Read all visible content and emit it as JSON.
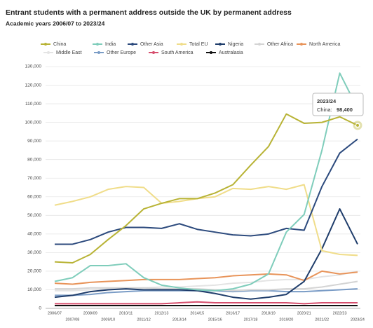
{
  "chart_data": {
    "type": "line",
    "title": "Entrant students with a permanent address outside the UK by permanent address",
    "subtitle": "Academic years 2006/07 to 2023/24",
    "categories": [
      "2006/07",
      "2007/08",
      "2008/09",
      "2009/10",
      "2010/11",
      "2011/12",
      "2012/13",
      "2013/14",
      "2014/15",
      "2015/16",
      "2016/17",
      "2017/18",
      "2018/19",
      "2019/20",
      "2020/21",
      "2021/22",
      "2022/23",
      "2023/24"
    ],
    "series": [
      {
        "name": "China",
        "color": "#b8b335",
        "values": [
          25000,
          24500,
          29000,
          37000,
          44500,
          53500,
          56500,
          59000,
          59000,
          62000,
          66500,
          77000,
          87000,
          104500,
          99500,
          100000,
          103000,
          98400
        ]
      },
      {
        "name": "India",
        "color": "#7fcdbb",
        "values": [
          14500,
          16500,
          23000,
          23000,
          24000,
          16500,
          12500,
          11000,
          10000,
          9500,
          10500,
          13000,
          18500,
          41000,
          50500,
          85000,
          126500,
          107500
        ]
      },
      {
        "name": "Other Asia",
        "color": "#2c4a7d",
        "values": [
          34500,
          34500,
          37000,
          41000,
          43500,
          43500,
          43000,
          45500,
          42500,
          41000,
          39500,
          39000,
          40000,
          43000,
          42000,
          65500,
          83500,
          91000
        ]
      },
      {
        "name": "Total EU",
        "color": "#f0dd8a",
        "values": [
          55500,
          57500,
          60000,
          64000,
          65500,
          65000,
          56500,
          57500,
          59000,
          60000,
          64500,
          64000,
          65500,
          64000,
          66500,
          31000,
          29000,
          28500
        ]
      },
      {
        "name": "Nigeria",
        "color": "#1f3d6b",
        "values": [
          6000,
          7000,
          9000,
          10000,
          10500,
          10000,
          10000,
          10000,
          9500,
          8000,
          6000,
          5000,
          6000,
          7500,
          14500,
          32000,
          53500,
          34500
        ]
      },
      {
        "name": "Other Africa",
        "color": "#d4d4d4",
        "values": [
          10500,
          10500,
          11000,
          11000,
          11000,
          11000,
          10500,
          10500,
          10500,
          10000,
          9500,
          10000,
          10000,
          10500,
          10500,
          11500,
          13000,
          14500
        ]
      },
      {
        "name": "North America",
        "color": "#e8945a",
        "values": [
          13500,
          13000,
          14000,
          14500,
          15000,
          15500,
          15500,
          15500,
          16000,
          16500,
          17500,
          18000,
          18500,
          18000,
          15000,
          20000,
          18500,
          19500
        ]
      },
      {
        "name": "Middle East",
        "color": "#e4e4e4",
        "values": [
          9500,
          9500,
          10000,
          10500,
          10500,
          11000,
          11500,
          11500,
          12000,
          12500,
          13500,
          14000,
          15000,
          15500,
          15500,
          17000,
          18000,
          20000
        ]
      },
      {
        "name": "Other Europe",
        "color": "#7a9cc6",
        "values": [
          7000,
          7000,
          7500,
          8500,
          9000,
          9500,
          9500,
          9500,
          9500,
          9500,
          9000,
          9500,
          9500,
          9000,
          9000,
          9500,
          10000,
          10500
        ]
      },
      {
        "name": "South America",
        "color": "#d64f6e",
        "values": [
          2500,
          2500,
          2500,
          2500,
          2500,
          2500,
          2500,
          3000,
          3500,
          3000,
          3000,
          3000,
          3000,
          3000,
          2500,
          3000,
          3000,
          3000
        ]
      },
      {
        "name": "Australasia",
        "color": "#111111",
        "values": [
          1500,
          1500,
          1500,
          1500,
          1500,
          1500,
          1500,
          1500,
          1500,
          1500,
          1500,
          1500,
          1500,
          1500,
          1500,
          1500,
          1500,
          1500
        ]
      }
    ],
    "ylim": [
      0,
      130000
    ],
    "yticks": [
      0,
      {
        "value": 10000,
        "label": "10,000"
      },
      {
        "value": 20000,
        "label": "20,000"
      },
      {
        "value": 30000,
        "label": "30,000"
      },
      {
        "value": 40000,
        "label": "40,000"
      },
      {
        "value": 50000,
        "label": "50,000"
      },
      {
        "value": 60000,
        "label": "60,000"
      },
      {
        "value": 70000,
        "label": "70,000"
      },
      {
        "value": 80000,
        "label": "80,000"
      },
      {
        "value": 90000,
        "label": "90,000"
      },
      {
        "value": 100000,
        "label": "100,000"
      },
      {
        "value": 110000,
        "label": "110,000"
      },
      {
        "value": 120000,
        "label": "120,000"
      },
      {
        "value": 130000,
        "label": "130,000"
      }
    ],
    "grid": true,
    "annotation": {
      "title": "2023/24",
      "label": "China:",
      "value": 98400,
      "value_label": "98,400"
    }
  }
}
